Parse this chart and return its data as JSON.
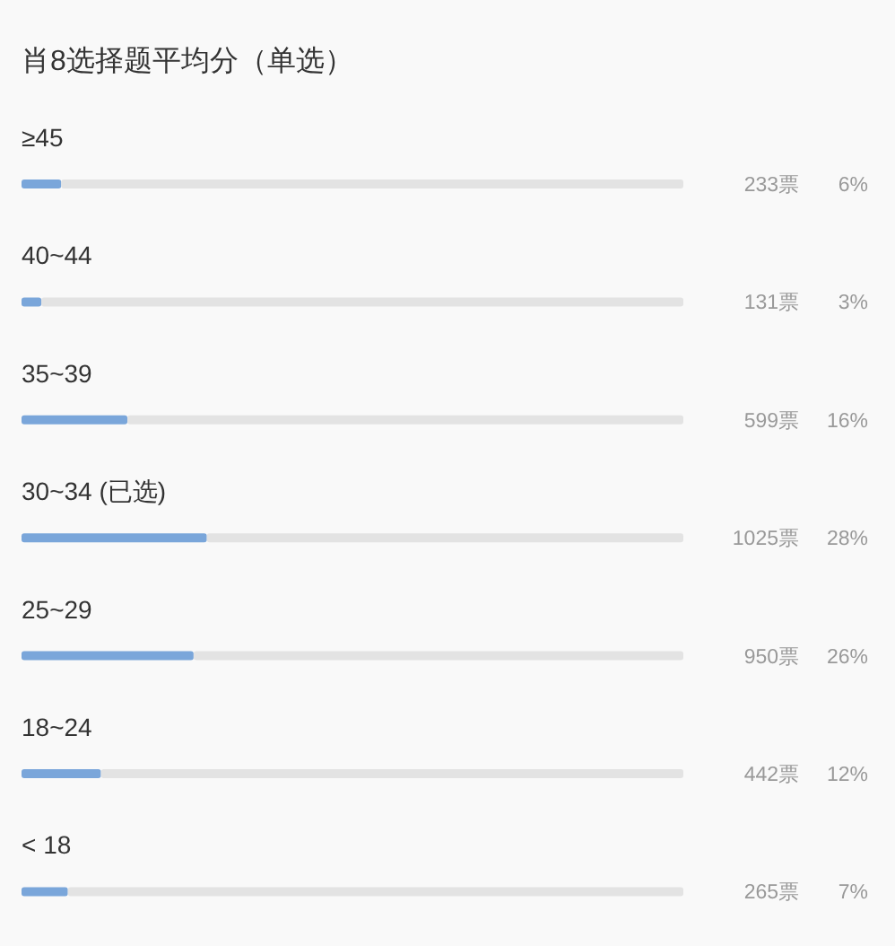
{
  "chart_data": {
    "type": "bar",
    "orientation": "horizontal",
    "title": "肖8选择题平均分（单选）",
    "categories": [
      "≥45",
      "40~44",
      "35~39",
      "30~34 (已选)",
      "25~29",
      "18~24",
      "< 18"
    ],
    "values": [
      6,
      3,
      16,
      28,
      26,
      12,
      7
    ],
    "value_labels": [
      "6%",
      "3%",
      "16%",
      "28%",
      "26%",
      "12%",
      "7%"
    ],
    "color": "#7aa6da",
    "xlim": [
      0,
      100
    ],
    "tick_labels": "y",
    "annotations": [
      "233票",
      "131票",
      "599票",
      "1025票",
      "950票",
      "442票",
      "265票"
    ]
  }
}
